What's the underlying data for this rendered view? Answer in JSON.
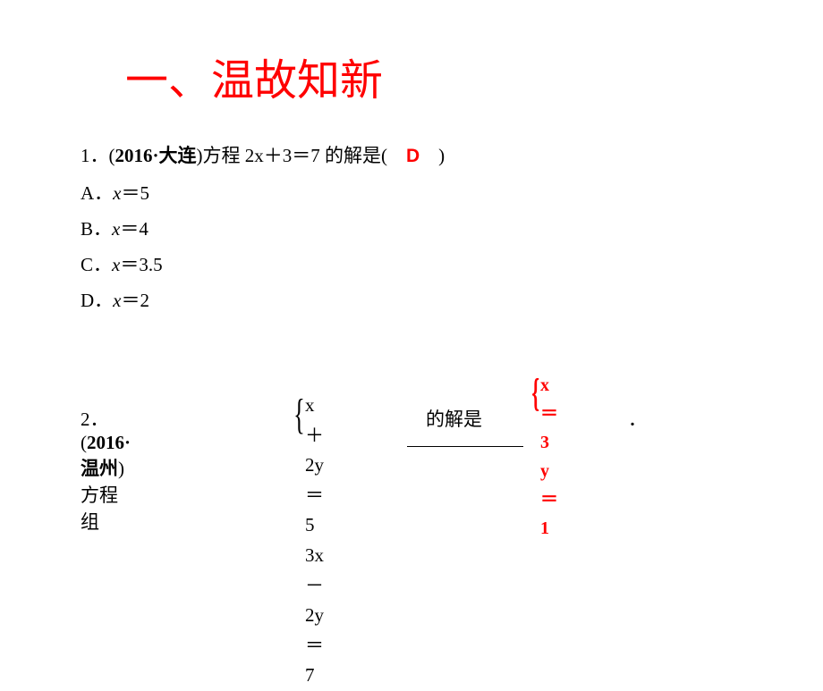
{
  "section_title": "一、温故知新",
  "q1": {
    "prefix": "1．(",
    "year_city": "2016·大连",
    "stem_end": ")方程 2x＋3＝7 的解是(　",
    "answer": "D",
    "close": "　)",
    "options": {
      "A_prefix": "A．",
      "A_var": "x",
      "A_val": "＝5",
      "B_prefix": "B．",
      "B_var": "x",
      "B_val": "＝4",
      "C_prefix": "C．",
      "C_var": "x",
      "C_val": "＝3.5",
      "D_prefix": "D．",
      "D_var": "x",
      "D_val": "＝2"
    }
  },
  "q2": {
    "prefix": "2．(",
    "year_city": "2016·温州",
    "stem_mid": ")方程组",
    "eq1": "x＋2y＝5",
    "eq2": "3x－2y＝7",
    "suffix": "　的解是",
    "answer_line1": "x＝3",
    "answer_line2": "y＝1",
    "period": "．"
  },
  "style": {
    "title_color": "#ff0000",
    "title_fontsize": 48,
    "body_fontsize": 21,
    "answer_color": "#ff0000",
    "background": "#ffffff",
    "text_color": "#000000"
  }
}
